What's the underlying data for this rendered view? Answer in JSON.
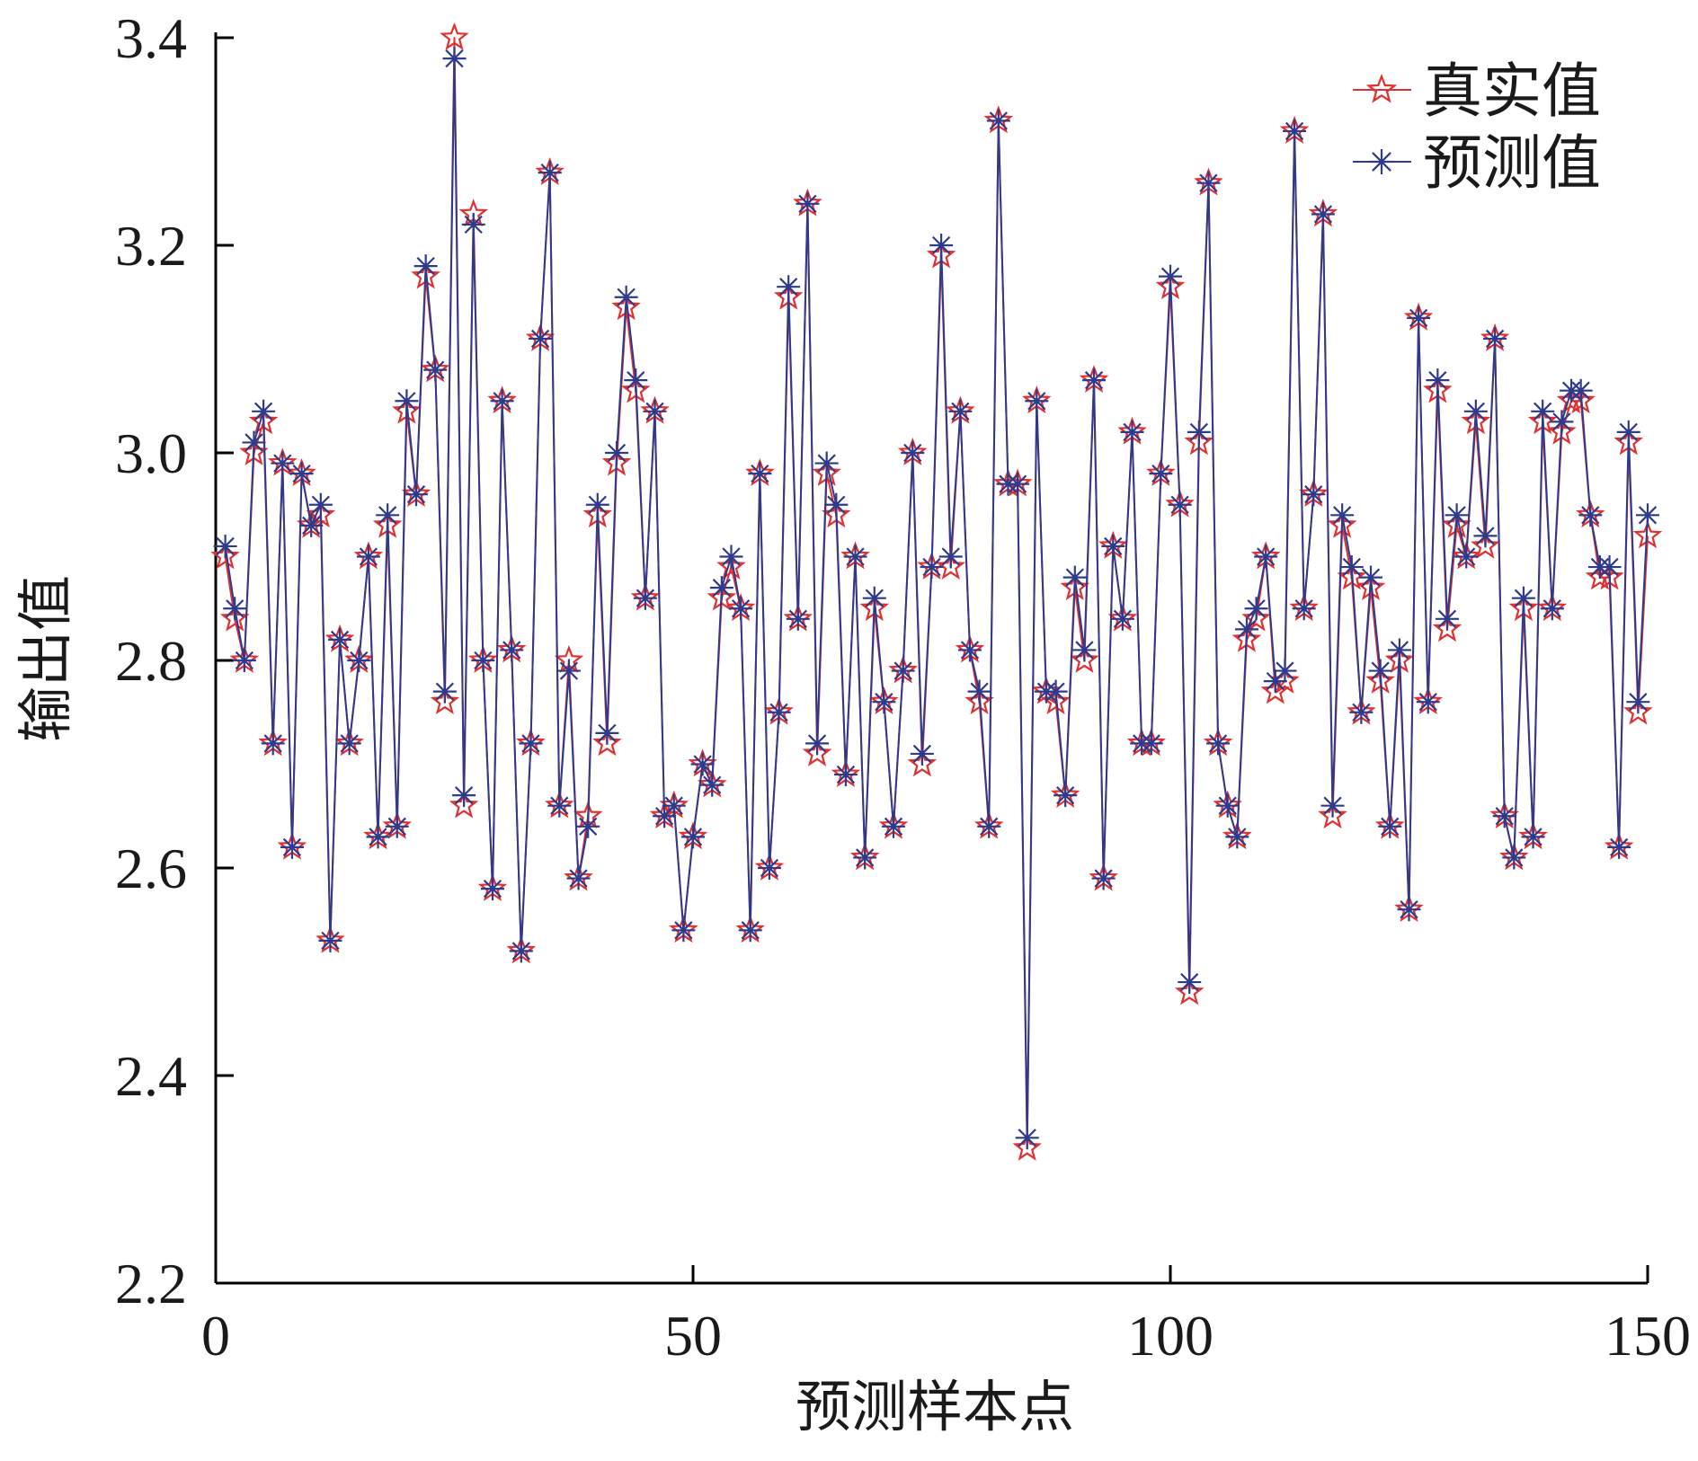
{
  "chart_data": {
    "type": "line",
    "title": "",
    "xlabel": "预测样本点",
    "ylabel": "输出值",
    "xlim": [
      0,
      150
    ],
    "ylim": [
      2.2,
      3.4
    ],
    "xticks": [
      0,
      50,
      100,
      150
    ],
    "xtick_labels": [
      "0",
      "50",
      "100",
      "150"
    ],
    "yticks": [
      2.2,
      2.4,
      2.6,
      2.8,
      3.0,
      3.2,
      3.4
    ],
    "ytick_labels": [
      "2.2",
      "2.4",
      "2.6",
      "2.8",
      "3.0",
      "3.2",
      "3.4"
    ],
    "grid": false,
    "legend_position": "top-right",
    "series": [
      {
        "name": "真实值",
        "color": "#e03030",
        "marker": "star",
        "values": [
          2.9,
          2.84,
          2.8,
          3.0,
          3.03,
          2.72,
          2.99,
          2.62,
          2.98,
          2.93,
          2.94,
          2.53,
          2.82,
          2.72,
          2.8,
          2.9,
          2.63,
          2.93,
          2.64,
          3.04,
          2.96,
          3.17,
          3.08,
          2.76,
          3.4,
          2.66,
          3.23,
          2.8,
          2.58,
          3.05,
          2.81,
          2.52,
          2.72,
          3.11,
          3.27,
          2.66,
          2.8,
          2.59,
          2.65,
          2.94,
          2.72,
          2.99,
          3.14,
          3.06,
          2.86,
          3.04,
          2.65,
          2.66,
          2.54,
          2.63,
          2.7,
          2.68,
          2.86,
          2.89,
          2.85,
          2.54,
          2.98,
          2.6,
          2.75,
          3.15,
          2.84,
          3.24,
          2.71,
          2.98,
          2.94,
          2.69,
          2.9,
          2.61,
          2.85,
          2.76,
          2.64,
          2.79,
          3.0,
          2.7,
          2.89,
          3.19,
          2.89,
          3.04,
          2.81,
          2.76,
          2.64,
          3.32,
          2.97,
          2.97,
          2.33,
          3.05,
          2.77,
          2.76,
          2.67,
          2.87,
          2.8,
          3.07,
          2.59,
          2.91,
          2.84,
          3.02,
          2.72,
          2.72,
          2.98,
          3.16,
          2.95,
          2.48,
          3.01,
          3.26,
          2.72,
          2.66,
          2.63,
          2.82,
          2.84,
          2.9,
          2.77,
          2.78,
          3.31,
          2.85,
          2.96,
          3.23,
          2.65,
          2.93,
          2.88,
          2.75,
          2.87,
          2.78,
          2.64,
          2.8,
          2.56,
          3.13,
          2.76,
          3.06,
          2.83,
          2.93,
          2.9,
          3.03,
          2.91,
          3.11,
          2.65,
          2.61,
          2.85,
          2.63,
          3.03,
          2.85,
          3.02,
          3.05,
          3.05,
          2.94,
          2.88,
          2.88,
          2.62,
          3.01,
          2.75,
          2.92
        ]
      },
      {
        "name": "预测值",
        "color": "#2e3a8c",
        "marker": "asterisk",
        "values": [
          2.91,
          2.85,
          2.8,
          3.01,
          3.04,
          2.72,
          2.99,
          2.62,
          2.98,
          2.93,
          2.95,
          2.53,
          2.82,
          2.72,
          2.8,
          2.9,
          2.63,
          2.94,
          2.64,
          3.05,
          2.96,
          3.18,
          3.08,
          2.77,
          3.38,
          2.67,
          3.22,
          2.8,
          2.58,
          3.05,
          2.81,
          2.52,
          2.72,
          3.11,
          3.27,
          2.66,
          2.79,
          2.59,
          2.64,
          2.95,
          2.73,
          3.0,
          3.15,
          3.07,
          2.86,
          3.04,
          2.65,
          2.66,
          2.54,
          2.63,
          2.7,
          2.68,
          2.87,
          2.9,
          2.85,
          2.54,
          2.98,
          2.6,
          2.75,
          3.16,
          2.84,
          3.24,
          2.72,
          2.99,
          2.95,
          2.69,
          2.9,
          2.61,
          2.86,
          2.76,
          2.64,
          2.79,
          3.0,
          2.71,
          2.89,
          3.2,
          2.9,
          3.04,
          2.81,
          2.77,
          2.64,
          3.32,
          2.97,
          2.97,
          2.34,
          3.05,
          2.77,
          2.77,
          2.67,
          2.88,
          2.81,
          3.07,
          2.59,
          2.91,
          2.84,
          3.02,
          2.72,
          2.72,
          2.98,
          3.17,
          2.95,
          2.49,
          3.02,
          3.26,
          2.72,
          2.66,
          2.63,
          2.83,
          2.85,
          2.9,
          2.78,
          2.79,
          3.31,
          2.85,
          2.96,
          3.23,
          2.66,
          2.94,
          2.89,
          2.75,
          2.88,
          2.79,
          2.64,
          2.81,
          2.56,
          3.13,
          2.76,
          3.07,
          2.84,
          2.94,
          2.9,
          3.04,
          2.92,
          3.11,
          2.65,
          2.61,
          2.86,
          2.63,
          3.04,
          2.85,
          3.03,
          3.06,
          3.06,
          2.94,
          2.89,
          2.89,
          2.62,
          3.02,
          2.76,
          2.94
        ]
      }
    ]
  }
}
